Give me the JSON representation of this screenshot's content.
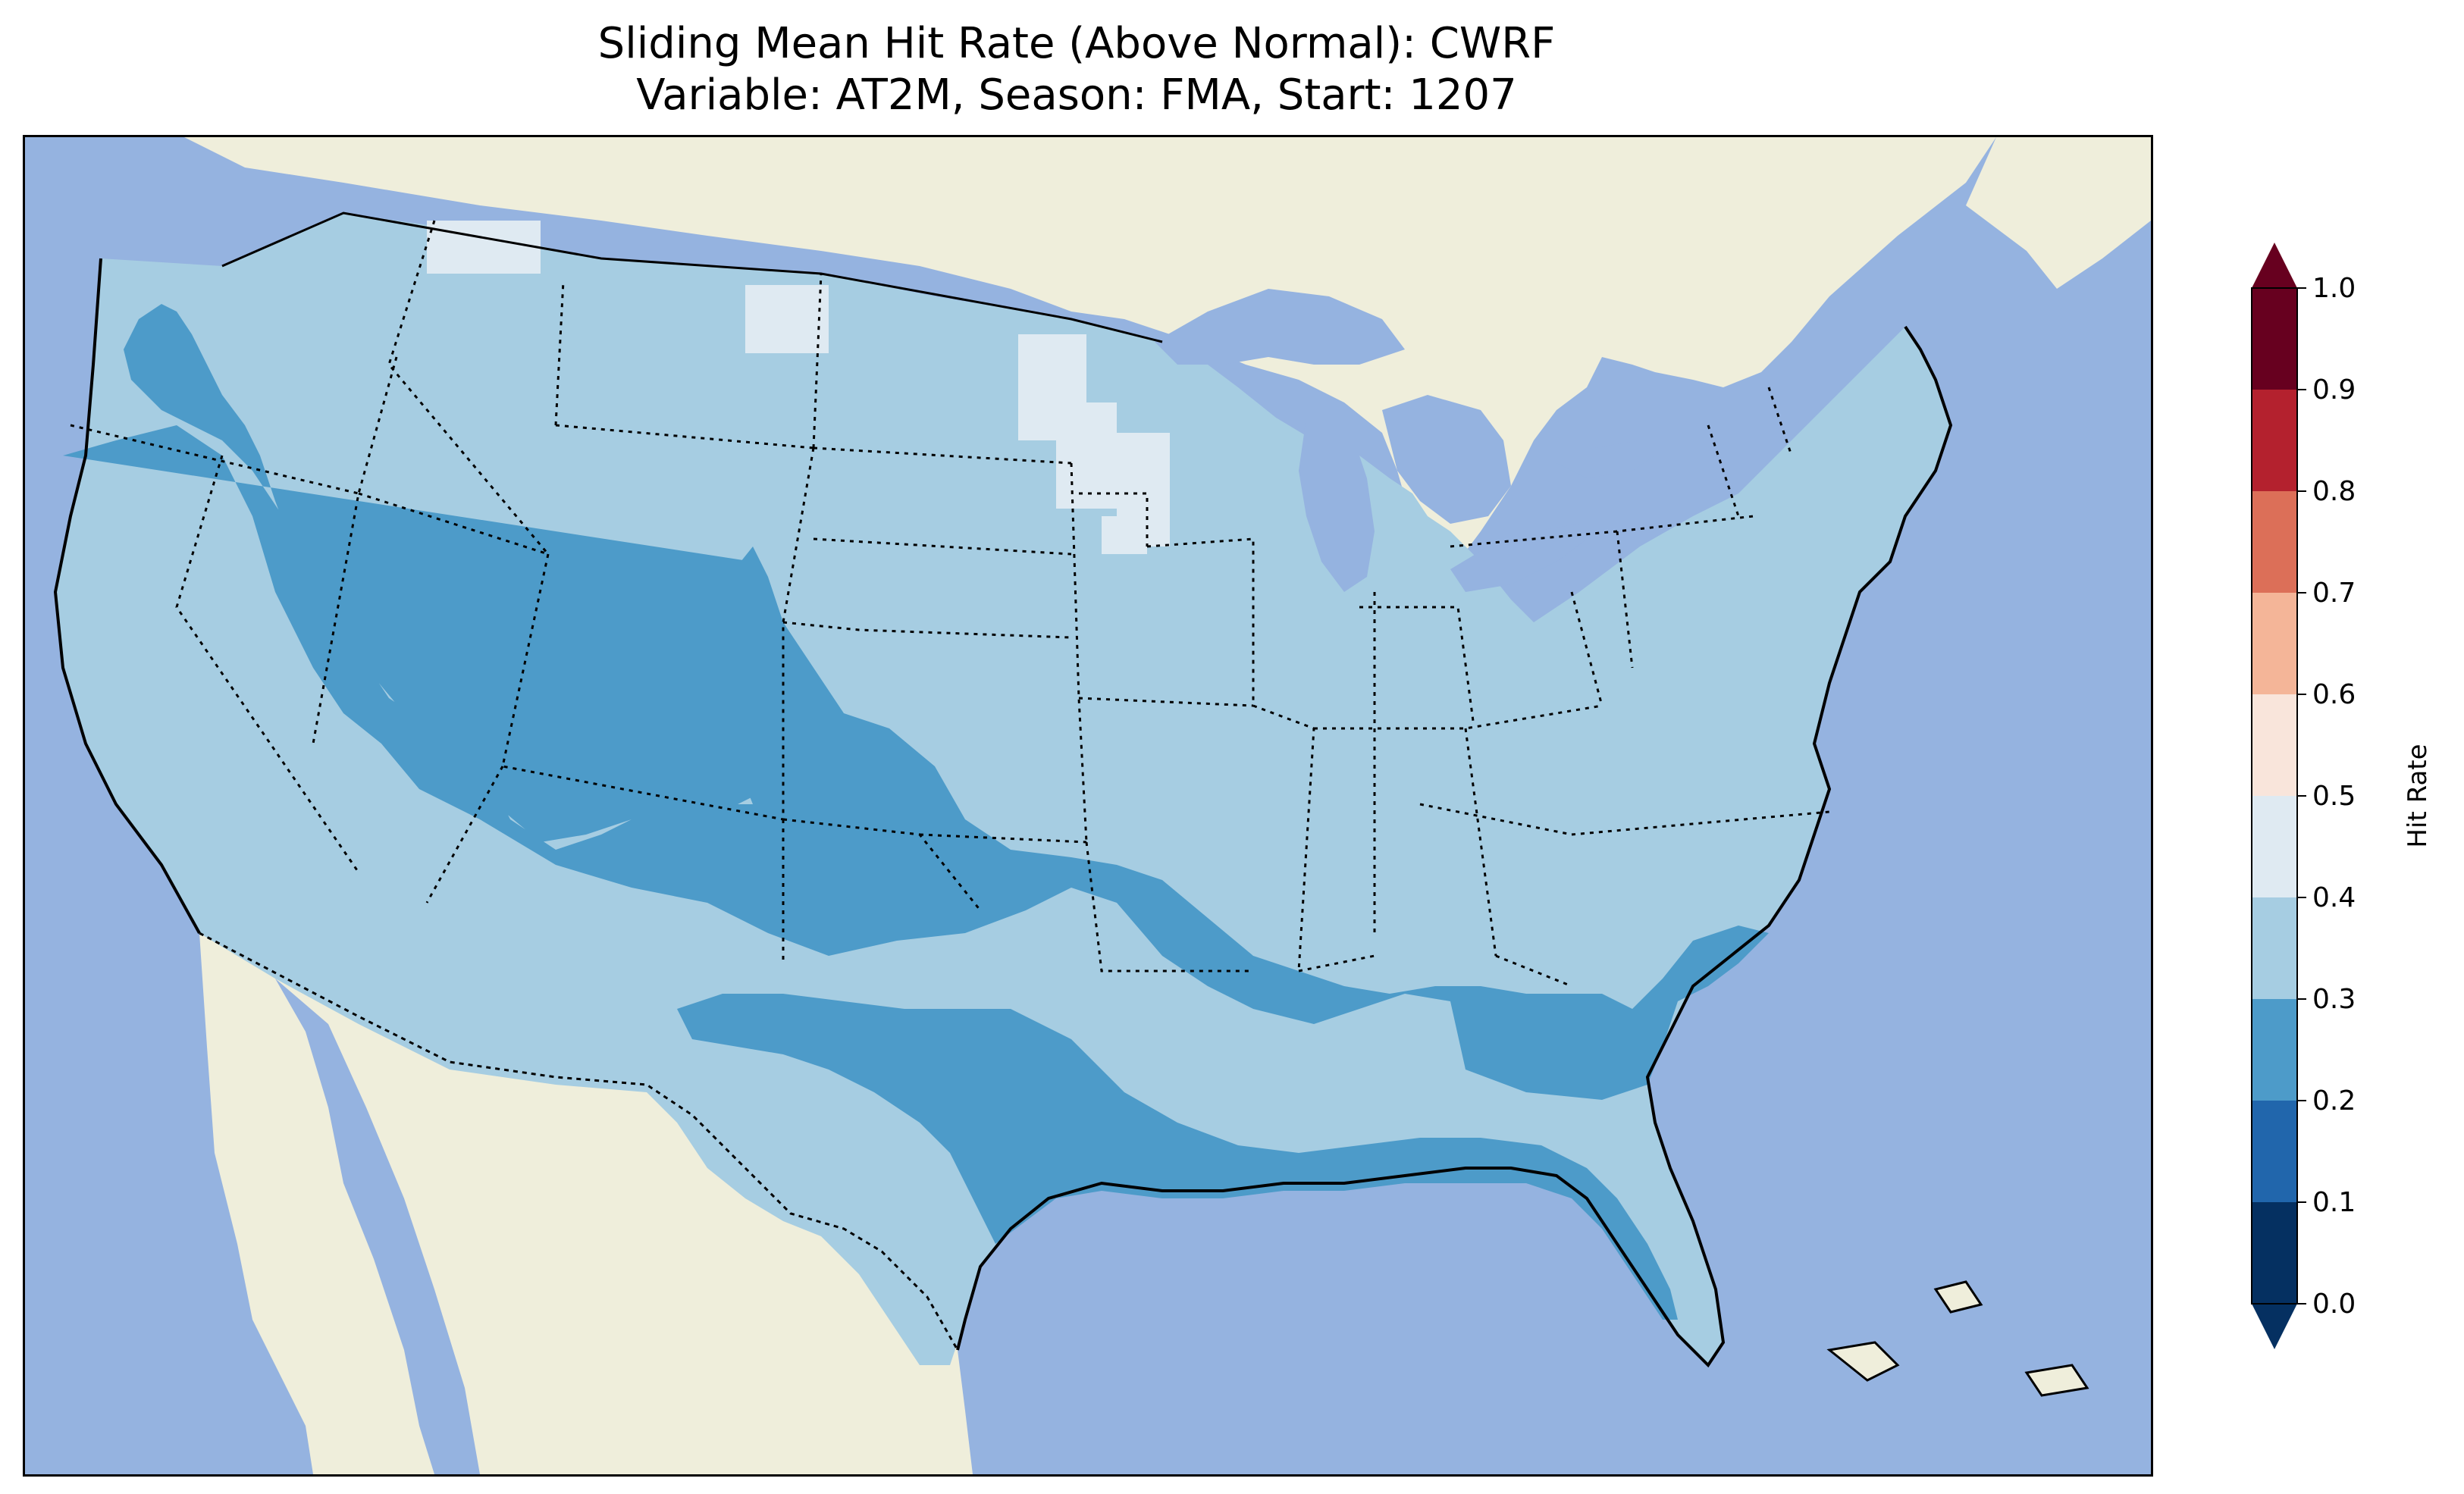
{
  "title": {
    "line1": "Sliding Mean Hit Rate (Above Normal): CWRF",
    "line2": "Variable: AT2M, Season: FMA, Start: 1207"
  },
  "colors": {
    "ocean": "#95b3e0",
    "land": "#efeedb",
    "lake": "#95b3e0"
  },
  "colorbar": {
    "label": "Hit Rate",
    "ticks": [
      "0.0",
      "0.1",
      "0.2",
      "0.3",
      "0.4",
      "0.5",
      "0.6",
      "0.7",
      "0.8",
      "0.9",
      "1.0"
    ],
    "bins": [
      {
        "from": 0.0,
        "to": 0.1,
        "color": "#053061"
      },
      {
        "from": 0.1,
        "to": 0.2,
        "color": "#2166ac"
      },
      {
        "from": 0.2,
        "to": 0.3,
        "color": "#4d9bc9"
      },
      {
        "from": 0.3,
        "to": 0.4,
        "color": "#a6cde2"
      },
      {
        "from": 0.4,
        "to": 0.5,
        "color": "#dfeaf2"
      },
      {
        "from": 0.5,
        "to": 0.6,
        "color": "#f9e5db"
      },
      {
        "from": 0.6,
        "to": 0.7,
        "color": "#f4b598"
      },
      {
        "from": 0.7,
        "to": 0.8,
        "color": "#dc6f58"
      },
      {
        "from": 0.8,
        "to": 0.9,
        "color": "#b4212e"
      },
      {
        "from": 0.9,
        "to": 1.0,
        "color": "#67001f"
      }
    ],
    "extend_under_color": "#053061",
    "extend_over_color": "#67001f"
  }
}
